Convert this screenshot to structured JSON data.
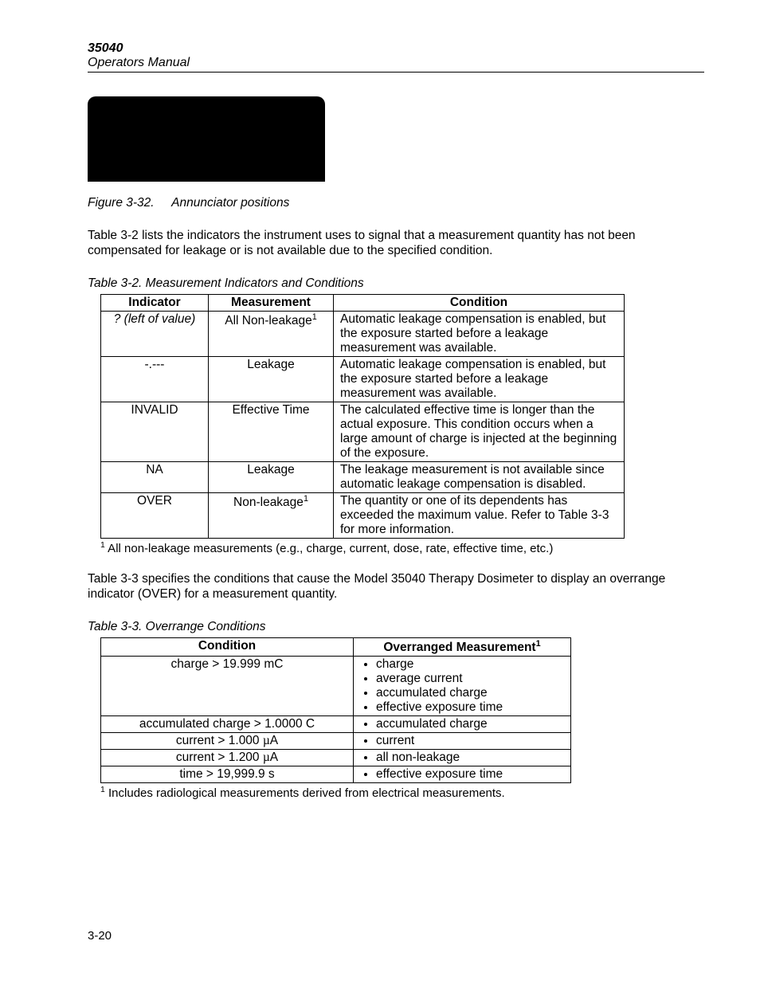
{
  "header": {
    "model": "35040",
    "subtitle": "Operators Manual"
  },
  "figure": {
    "label": "Figure 3-32.",
    "caption": "Annunciator positions"
  },
  "para1": "Table 3-2 lists the indicators the instrument uses to signal that a measurement quantity has not been compensated for leakage or is not available due to the specified condition.",
  "table32": {
    "title": "Table 3-2.  Measurement Indicators and Conditions",
    "headers": [
      "Indicator",
      "Measurement",
      "Condition"
    ],
    "rows": [
      {
        "indicator": "? (left of value)",
        "indicator_italic": true,
        "measurement": "All Non-leakage",
        "measurement_sup": "1",
        "condition": "Automatic leakage compensation is enabled, but the exposure started before a leakage measurement was available."
      },
      {
        "indicator": "-.---",
        "measurement": "Leakage",
        "condition": "Automatic leakage compensation is enabled, but the exposure started before a leakage measurement was available."
      },
      {
        "indicator": "INVALID",
        "measurement": "Effective Time",
        "condition": "The calculated effective time is longer than the actual exposure.  This condition occurs when a large amount of charge is injected at the beginning of the exposure."
      },
      {
        "indicator": "NA",
        "measurement": "Leakage",
        "condition": "The leakage measurement is not available since automatic leakage compensation is disabled."
      },
      {
        "indicator": "OVER",
        "measurement": "Non-leakage",
        "measurement_sup": "1",
        "condition": "The quantity or one of its dependents has exceeded the maximum value.  Refer to Table 3-3 for more information."
      }
    ],
    "footnote_sup": "1",
    "footnote": " All non-leakage measurements (e.g., charge, current, dose, rate, effective time, etc.)"
  },
  "para2": "Table 3-3 specifies the conditions that cause the Model 35040 Therapy Dosimeter to display an overrange indicator (OVER) for a measurement quantity.",
  "table33": {
    "title": "Table 3-3.  Overrange Conditions",
    "headers": [
      "Condition",
      "Overranged Measurement"
    ],
    "header2_sup": "1",
    "rows": [
      {
        "condition": "charge > 19.999 mC",
        "items": [
          "charge",
          "average current",
          "accumulated charge",
          "effective exposure time"
        ]
      },
      {
        "condition": "accumulated charge > 1.0000 C",
        "items": [
          "accumulated charge"
        ]
      },
      {
        "condition_html": "current > 1.000 µA",
        "items": [
          "current"
        ]
      },
      {
        "condition_html": "current > 1.200 µA",
        "items": [
          "all non-leakage"
        ]
      },
      {
        "condition": "time > 19,999.9 s",
        "items": [
          "effective exposure time"
        ]
      }
    ],
    "footnote_sup": "1",
    "footnote": " Includes radiological measurements derived from electrical measurements."
  },
  "page_number": "3-20"
}
